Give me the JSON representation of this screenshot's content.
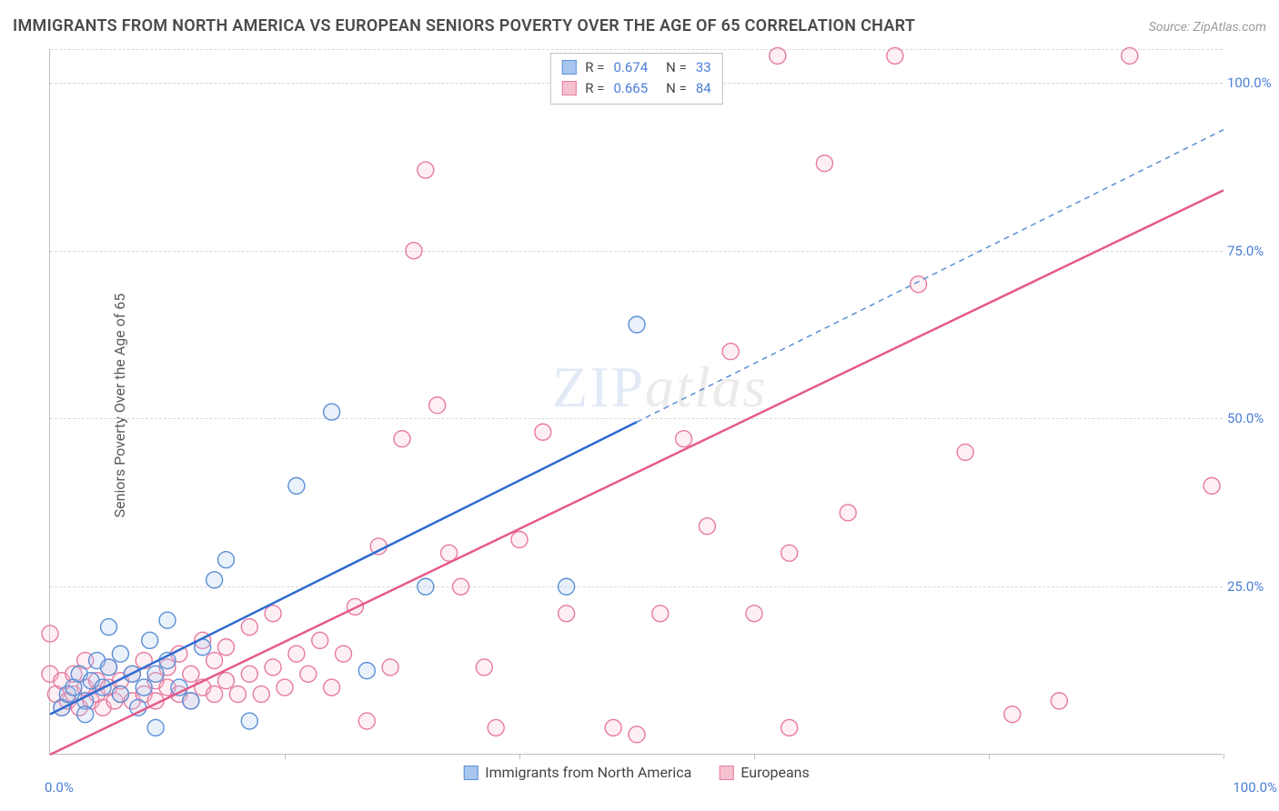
{
  "title": "IMMIGRANTS FROM NORTH AMERICA VS EUROPEAN SENIORS POVERTY OVER THE AGE OF 65 CORRELATION CHART",
  "source_label": "Source: ZipAtlas.com",
  "y_axis_label": "Seniors Poverty Over the Age of 65",
  "watermark": {
    "a": "ZIP",
    "b": "atlas"
  },
  "chart": {
    "type": "scatter",
    "background_color": "#ffffff",
    "grid_color": "#d8d8d8",
    "axis_color": "#bfbfbf",
    "tick_color": "#4a7fd6",
    "xlim": [
      0,
      100
    ],
    "ylim": [
      0,
      105
    ],
    "y_ticks": [
      25,
      50,
      75,
      100
    ],
    "y_tick_labels": [
      "25.0%",
      "50.0%",
      "75.0%",
      "100.0%"
    ],
    "x_tick_marks": [
      20,
      40,
      60,
      80,
      100
    ],
    "x_tick_labels": {
      "min": "0.0%",
      "max": "100.0%"
    },
    "marker_radius": 9,
    "series": [
      {
        "id": "na",
        "label": "Immigrants from North America",
        "fill": "#a9c6ef",
        "stroke": "#5a8fd6",
        "R": "0.674",
        "N": "33",
        "trend": {
          "x1": 0,
          "y1": 6,
          "x2": 50,
          "y2": 49.5,
          "dash_from_x": 50,
          "dash_to_x": 100,
          "dash_to_y": 93,
          "solid_width": 2.5,
          "dash_pattern": "6 5"
        },
        "points": [
          [
            1,
            7
          ],
          [
            1.5,
            9
          ],
          [
            2,
            10
          ],
          [
            2.5,
            12
          ],
          [
            3,
            8
          ],
          [
            3,
            6
          ],
          [
            3.5,
            11
          ],
          [
            4,
            14
          ],
          [
            4.5,
            10
          ],
          [
            5,
            13
          ],
          [
            5,
            19
          ],
          [
            6,
            9
          ],
          [
            6,
            15
          ],
          [
            7,
            12
          ],
          [
            7.5,
            7
          ],
          [
            8,
            10
          ],
          [
            8.5,
            17
          ],
          [
            9,
            12
          ],
          [
            9,
            4
          ],
          [
            10,
            14
          ],
          [
            10,
            20
          ],
          [
            11,
            10
          ],
          [
            12,
            8
          ],
          [
            13,
            16
          ],
          [
            14,
            26
          ],
          [
            15,
            29
          ],
          [
            17,
            5
          ],
          [
            21,
            40
          ],
          [
            24,
            51
          ],
          [
            27,
            12.5
          ],
          [
            32,
            25
          ],
          [
            44,
            25
          ],
          [
            50,
            64
          ]
        ]
      },
      {
        "id": "eu",
        "label": "Europeans",
        "fill": "#f6c1cf",
        "stroke": "#e77aa0",
        "R": "0.665",
        "N": "84",
        "trend": {
          "x1": 0,
          "y1": 0,
          "x2": 100,
          "y2": 84,
          "solid_width": 2.5
        },
        "points": [
          [
            0,
            12
          ],
          [
            0,
            18
          ],
          [
            0.5,
            9
          ],
          [
            1,
            7
          ],
          [
            1,
            11
          ],
          [
            1.5,
            8
          ],
          [
            2,
            9
          ],
          [
            2,
            12
          ],
          [
            2.5,
            7
          ],
          [
            3,
            10
          ],
          [
            3,
            14
          ],
          [
            3.5,
            8
          ],
          [
            4,
            9
          ],
          [
            4,
            11
          ],
          [
            4.5,
            7
          ],
          [
            5,
            10
          ],
          [
            5,
            13
          ],
          [
            5.5,
            8
          ],
          [
            6,
            9
          ],
          [
            6,
            11
          ],
          [
            7,
            8
          ],
          [
            7,
            12
          ],
          [
            8,
            9
          ],
          [
            8,
            14
          ],
          [
            9,
            8
          ],
          [
            9,
            11
          ],
          [
            10,
            10
          ],
          [
            10,
            13
          ],
          [
            11,
            9
          ],
          [
            11,
            15
          ],
          [
            12,
            8
          ],
          [
            12,
            12
          ],
          [
            13,
            10
          ],
          [
            13,
            17
          ],
          [
            14,
            9
          ],
          [
            14,
            14
          ],
          [
            15,
            11
          ],
          [
            15,
            16
          ],
          [
            16,
            9
          ],
          [
            17,
            12
          ],
          [
            17,
            19
          ],
          [
            18,
            9
          ],
          [
            19,
            13
          ],
          [
            19,
            21
          ],
          [
            20,
            10
          ],
          [
            21,
            15
          ],
          [
            22,
            12
          ],
          [
            23,
            17
          ],
          [
            24,
            10
          ],
          [
            25,
            15
          ],
          [
            26,
            22
          ],
          [
            27,
            5
          ],
          [
            28,
            31
          ],
          [
            29,
            13
          ],
          [
            30,
            47
          ],
          [
            31,
            75
          ],
          [
            32,
            87
          ],
          [
            33,
            52
          ],
          [
            34,
            30
          ],
          [
            35,
            25
          ],
          [
            37,
            13
          ],
          [
            38,
            4
          ],
          [
            40,
            32
          ],
          [
            42,
            48
          ],
          [
            44,
            21
          ],
          [
            48,
            4
          ],
          [
            50,
            3
          ],
          [
            52,
            21
          ],
          [
            54,
            47
          ],
          [
            56,
            34
          ],
          [
            58,
            60
          ],
          [
            60,
            21
          ],
          [
            62,
            104
          ],
          [
            63,
            30
          ],
          [
            63,
            4
          ],
          [
            66,
            88
          ],
          [
            68,
            36
          ],
          [
            72,
            104
          ],
          [
            74,
            70
          ],
          [
            78,
            45
          ],
          [
            82,
            6
          ],
          [
            86,
            8
          ],
          [
            92,
            104
          ],
          [
            99,
            40
          ]
        ]
      }
    ]
  },
  "legend_bottom": [
    {
      "swatch_fill": "#a9c6ef",
      "swatch_stroke": "#5a8fd6",
      "label": "Immigrants from North America"
    },
    {
      "swatch_fill": "#f6c1cf",
      "swatch_stroke": "#e77aa0",
      "label": "Europeans"
    }
  ]
}
